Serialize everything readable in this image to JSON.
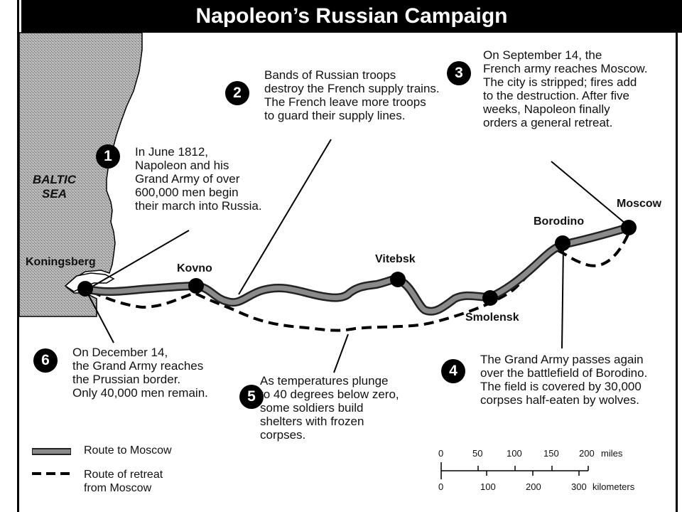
{
  "title": "Napoleon’s Russian Campaign",
  "sea_label": [
    "BALTIC",
    "SEA"
  ],
  "cities": {
    "koningsberg": "Koningsberg",
    "kovno": "Kovno",
    "vitebsk": "Vitebsk",
    "smolensk": "Smolensk",
    "borodino": "Borodino",
    "moscow": "Moscow"
  },
  "callouts": [
    {
      "number": "1",
      "lines": [
        "In June 1812,",
        "Napoleon and his",
        "Grand Army of over",
        "600,000 men begin",
        "their march into Russia."
      ]
    },
    {
      "number": "2",
      "lines": [
        "Bands of Russian troops",
        "destroy the French supply trains.",
        "The French leave more troops",
        "to guard their supply lines."
      ]
    },
    {
      "number": "3",
      "lines": [
        "On September 14, the",
        "French army reaches Moscow.",
        "The city is stripped; fires add",
        "to the destruction. After five",
        "weeks, Napoleon finally",
        "orders a general retreat."
      ]
    },
    {
      "number": "4",
      "lines": [
        "The Grand Army passes again",
        "over the battlefield of Borodino.",
        "The field is covered by 30,000",
        "corpses half-eaten by  wolves."
      ]
    },
    {
      "number": "5",
      "lines": [
        "As temperatures plunge",
        "to 40 degrees below zero,",
        "some soldiers build",
        "shelters with frozen",
        "corpses."
      ]
    },
    {
      "number": "6",
      "lines": [
        "On December 14,",
        "the Grand Army reaches",
        "the Prussian border.",
        "Only 40,000 men remain."
      ]
    }
  ],
  "legend": {
    "advance": "Route to Moscow",
    "retreat": [
      "Route of retreat",
      "from Moscow"
    ]
  },
  "scale": {
    "miles_ticks": [
      "0",
      "50",
      "100",
      "150",
      "200"
    ],
    "miles_unit": "miles",
    "km_ticks": [
      "0",
      "100",
      "200",
      "300"
    ],
    "km_unit": "kilometers"
  },
  "colors": {
    "advance_route": "#7a7a7a",
    "land_shading": "#a9a9a9",
    "frame": "#000000"
  }
}
